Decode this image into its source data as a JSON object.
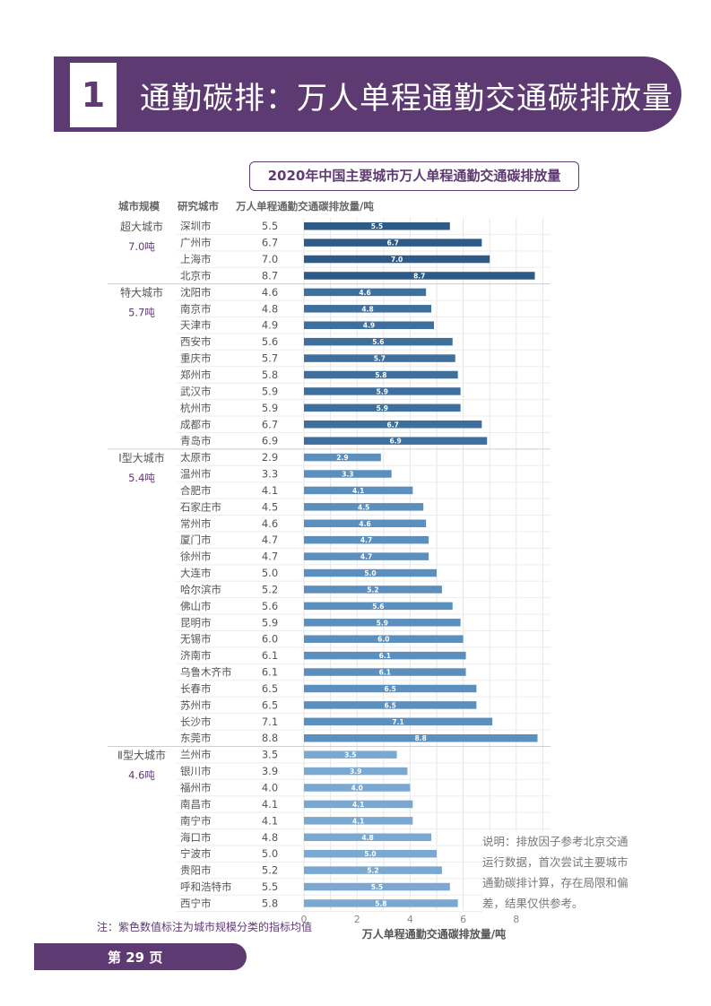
{
  "header": {
    "number": "1",
    "title": "通勤碳排：万人单程通勤交通碳排放量"
  },
  "colors": {
    "brand": "#5e3a72",
    "super_big": "#2e5a87",
    "mega": "#3f6f9d",
    "type1": "#5b8fbd",
    "type2": "#7ba8d1"
  },
  "chart_data": {
    "type": "bar",
    "orientation": "horizontal",
    "title": "2020年中国主要城市万人单程通勤交通碳排放量",
    "column_headers": [
      "城市规模",
      "研究城市",
      "万人单程通勤交通碳排放量/吨"
    ],
    "xlabel": "万人单程通勤交通碳排放量/吨",
    "xlim": [
      0,
      9
    ],
    "xticks": [
      "0",
      "2",
      "4",
      "6",
      "8"
    ],
    "grid": true,
    "groups": [
      {
        "name": "超大城市",
        "average": "7.0吨",
        "color_key": "super_big",
        "cities": [
          {
            "city": "深圳市",
            "label": "5.5",
            "value": 5.5
          },
          {
            "city": "广州市",
            "label": "6.7",
            "value": 6.7
          },
          {
            "city": "上海市",
            "label": "7.0",
            "value": 7.0
          },
          {
            "city": "北京市",
            "label": "8.7",
            "value": 8.7
          }
        ]
      },
      {
        "name": "特大城市",
        "average": "5.7吨",
        "color_key": "mega",
        "cities": [
          {
            "city": "沈阳市",
            "label": "4.6",
            "value": 4.6
          },
          {
            "city": "南京市",
            "label": "4.8",
            "value": 4.8
          },
          {
            "city": "天津市",
            "label": "4.9",
            "value": 4.9
          },
          {
            "city": "西安市",
            "label": "5.6",
            "value": 5.6
          },
          {
            "city": "重庆市",
            "label": "5.7",
            "value": 5.7
          },
          {
            "city": "郑州市",
            "label": "5.8",
            "value": 5.8
          },
          {
            "city": "武汉市",
            "label": "5.9",
            "value": 5.9
          },
          {
            "city": "杭州市",
            "label": "5.9",
            "value": 5.9
          },
          {
            "city": "成都市",
            "label": "6.7",
            "value": 6.7
          },
          {
            "city": "青岛市",
            "label": "6.9",
            "value": 6.9
          }
        ]
      },
      {
        "name": "Ⅰ型大城市",
        "average": "5.4吨",
        "color_key": "type1",
        "cities": [
          {
            "city": "太原市",
            "label": "2.9",
            "value": 2.9
          },
          {
            "city": "温州市",
            "label": "3.3",
            "value": 3.3
          },
          {
            "city": "合肥市",
            "label": "4.1",
            "value": 4.1
          },
          {
            "city": "石家庄市",
            "label": "4.5",
            "value": 4.5
          },
          {
            "city": "常州市",
            "label": "4.6",
            "value": 4.6
          },
          {
            "city": "厦门市",
            "label": "4.7",
            "value": 4.7
          },
          {
            "city": "徐州市",
            "label": "4.7",
            "value": 4.7
          },
          {
            "city": "大连市",
            "label": "5.0",
            "value": 5.0
          },
          {
            "city": "哈尔滨市",
            "label": "5.2",
            "value": 5.2
          },
          {
            "city": "佛山市",
            "label": "5.6",
            "value": 5.6
          },
          {
            "city": "昆明市",
            "label": "5.9",
            "value": 5.9
          },
          {
            "city": "无锡市",
            "label": "6.0",
            "value": 6.0
          },
          {
            "city": "济南市",
            "label": "6.1",
            "value": 6.1
          },
          {
            "city": "乌鲁木齐市",
            "label": "6.1",
            "value": 6.1
          },
          {
            "city": "长春市",
            "label": "6.5",
            "value": 6.5
          },
          {
            "city": "苏州市",
            "label": "6.5",
            "value": 6.5
          },
          {
            "city": "长沙市",
            "label": "7.1",
            "value": 7.1
          },
          {
            "city": "东莞市",
            "label": "8.8",
            "value": 8.8
          }
        ]
      },
      {
        "name": "Ⅱ型大城市",
        "average": "4.6吨",
        "color_key": "type2",
        "cities": [
          {
            "city": "兰州市",
            "label": "3.5",
            "value": 3.5
          },
          {
            "city": "银川市",
            "label": "3.9",
            "value": 3.9
          },
          {
            "city": "福州市",
            "label": "4.0",
            "value": 4.0
          },
          {
            "city": "南昌市",
            "label": "4.1",
            "value": 4.1
          },
          {
            "city": "南宁市",
            "label": "4.1",
            "value": 4.1
          },
          {
            "city": "海口市",
            "label": "4.8",
            "value": 4.8
          },
          {
            "city": "宁波市",
            "label": "5.0",
            "value": 5.0
          },
          {
            "city": "贵阳市",
            "label": "5.2",
            "value": 5.2
          },
          {
            "city": "呼和浩特市",
            "label": "5.5",
            "value": 5.5
          },
          {
            "city": "西宁市",
            "label": "5.8",
            "value": 5.8
          }
        ]
      }
    ]
  },
  "note": "说明：排放因子参考北京交通运行数据，首次尝试主要城市通勤碳排计算，存在局限和偏差，结果仅供参考。",
  "footnote": "注：紫色数值标注为城市规模分类的指标均值",
  "page": "第 29 页"
}
